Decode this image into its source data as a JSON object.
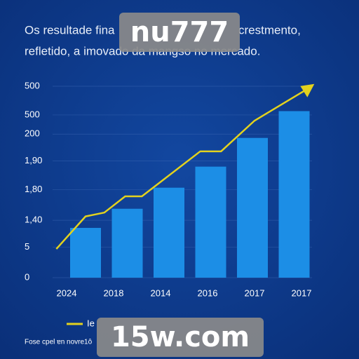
{
  "chart_data": {
    "type": "bar",
    "title_parts": [
      "Os resultade fina",
      "crestmento,",
      "refletido, a imovado da mangso no mercado."
    ],
    "categories": [
      "2024",
      "2018",
      "2014",
      "2016",
      "2017",
      "2017"
    ],
    "values": [
      26,
      36,
      47,
      58,
      73,
      87
    ],
    "color": "#1c8ee6",
    "line": {
      "name": "Ie",
      "color": "#e3d21e",
      "x": [
        -0.7,
        0,
        0.45,
        0.95,
        1.35,
        2.75,
        3.25,
        4.05,
        5.35
      ],
      "values": [
        15,
        32,
        34,
        42.5,
        42.5,
        66,
        66,
        82,
        99
      ]
    },
    "ylim": [
      0,
      100
    ],
    "yticks": [
      0,
      {
        "value": 16,
        "label": "5"
      },
      {
        "value": 30,
        "label": "1,40"
      },
      {
        "value": 46,
        "label": "1,80"
      },
      {
        "value": 61,
        "label": "1,90"
      },
      {
        "value": 75,
        "label": "200"
      },
      {
        "value": 85,
        "label": "500"
      },
      {
        "value": 100,
        "label": "500"
      }
    ],
    "grid": true,
    "footer": "Fose cpel ɐn novre1ô",
    "watermarks": [
      "nu777",
      "15w.com"
    ]
  }
}
